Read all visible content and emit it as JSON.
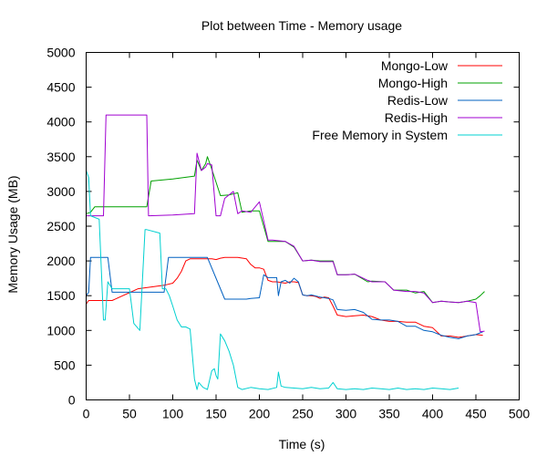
{
  "chart_data": {
    "type": "line",
    "title": "Plot between Time - Memory usage",
    "xlabel": "Time (s)",
    "ylabel": "Memory Usage (MB)",
    "xlim": [
      0,
      500
    ],
    "ylim": [
      0,
      5000
    ],
    "xticks": [
      0,
      50,
      100,
      150,
      200,
      250,
      300,
      350,
      400,
      450,
      500
    ],
    "yticks": [
      0,
      500,
      1000,
      1500,
      2000,
      2500,
      3000,
      3500,
      4000,
      4500,
      5000
    ],
    "grid": false,
    "legend_position": "top-right",
    "series": [
      {
        "name": "Mongo-Low",
        "color": "#ff0000",
        "x": [
          0,
          3,
          30,
          60,
          90,
          100,
          105,
          110,
          115,
          120,
          145,
          150,
          155,
          160,
          175,
          185,
          190,
          195,
          200,
          205,
          210,
          215,
          220,
          225,
          230,
          235,
          240,
          245,
          250,
          255,
          260,
          265,
          270,
          275,
          280,
          285,
          290,
          300,
          310,
          320,
          330,
          340,
          350,
          360,
          370,
          380,
          390,
          400,
          410,
          420,
          430,
          440,
          450,
          458
        ],
        "y": [
          1380,
          1430,
          1430,
          1600,
          1650,
          1680,
          1750,
          1850,
          2000,
          2030,
          2030,
          2020,
          2040,
          2050,
          2050,
          2030,
          1950,
          1900,
          1900,
          1880,
          1720,
          1700,
          1700,
          1690,
          1680,
          1700,
          1700,
          1690,
          1510,
          1500,
          1500,
          1490,
          1460,
          1480,
          1470,
          1350,
          1220,
          1200,
          1210,
          1220,
          1200,
          1150,
          1130,
          1130,
          1120,
          1120,
          1060,
          1040,
          920,
          920,
          900,
          920,
          940,
          930
        ]
      },
      {
        "name": "Mongo-High",
        "color": "#00a000",
        "x": [
          0,
          5,
          10,
          70,
          75,
          100,
          125,
          128,
          133,
          138,
          140,
          145,
          155,
          165,
          175,
          180,
          190,
          200,
          210,
          215,
          230,
          240,
          250,
          260,
          270,
          285,
          290,
          300,
          310,
          325,
          330,
          345,
          355,
          370,
          380,
          390,
          400,
          410,
          420,
          430,
          440,
          450,
          455,
          460
        ],
        "y": [
          2680,
          2700,
          2780,
          2780,
          3150,
          3180,
          3220,
          3450,
          3300,
          3400,
          3500,
          3320,
          2940,
          2950,
          2980,
          2700,
          2720,
          2720,
          2280,
          2280,
          2280,
          2200,
          2000,
          2010,
          2000,
          2000,
          1800,
          1800,
          1810,
          1700,
          1710,
          1700,
          1580,
          1580,
          1540,
          1560,
          1400,
          1420,
          1410,
          1400,
          1420,
          1450,
          1500,
          1560
        ]
      },
      {
        "name": "Redis-Low",
        "color": "#0060c0",
        "x": [
          0,
          3,
          5,
          25,
          30,
          35,
          60,
          90,
          95,
          120,
          140,
          160,
          185,
          190,
          200,
          205,
          210,
          220,
          222,
          225,
          230,
          235,
          240,
          245,
          250,
          255,
          260,
          270,
          280,
          285,
          290,
          300,
          310,
          320,
          330,
          340,
          350,
          360,
          370,
          380,
          390,
          400,
          410,
          420,
          430,
          440,
          450,
          458
        ],
        "y": [
          1500,
          1550,
          2050,
          2050,
          1550,
          1550,
          1550,
          1550,
          2050,
          2050,
          2050,
          1450,
          1450,
          1460,
          1470,
          1800,
          1760,
          1760,
          1500,
          1700,
          1720,
          1680,
          1750,
          1700,
          1510,
          1500,
          1510,
          1480,
          1460,
          1440,
          1300,
          1290,
          1300,
          1260,
          1160,
          1150,
          1150,
          1130,
          1060,
          1060,
          1000,
          980,
          930,
          900,
          880,
          920,
          940,
          980
        ]
      },
      {
        "name": "Redis-High",
        "color": "#a000d0",
        "x": [
          0,
          5,
          20,
          23,
          70,
          72,
          100,
          125,
          128,
          133,
          138,
          140,
          145,
          150,
          155,
          160,
          170,
          175,
          180,
          190,
          200,
          210,
          215,
          230,
          240,
          250,
          260,
          270,
          285,
          290,
          300,
          310,
          325,
          330,
          345,
          355,
          370,
          380,
          390,
          400,
          410,
          420,
          430,
          440,
          450,
          455,
          460
        ],
        "y": [
          2650,
          2650,
          2650,
          4100,
          4100,
          2650,
          2660,
          2680,
          3550,
          3300,
          3350,
          3400,
          3380,
          2650,
          2650,
          2900,
          3000,
          2680,
          2720,
          2700,
          2850,
          2300,
          2300,
          2280,
          2210,
          2000,
          2010,
          1990,
          1990,
          1800,
          1800,
          1810,
          1720,
          1700,
          1700,
          1580,
          1560,
          1560,
          1540,
          1400,
          1420,
          1410,
          1400,
          1420,
          1400,
          980,
          990
        ]
      },
      {
        "name": "Free Memory in System",
        "color": "#00d0d0",
        "x": [
          0,
          3,
          5,
          15,
          20,
          22,
          25,
          30,
          35,
          50,
          55,
          62,
          68,
          70,
          85,
          88,
          92,
          96,
          100,
          105,
          110,
          115,
          120,
          125,
          128,
          130,
          135,
          140,
          145,
          148,
          150,
          152,
          155,
          160,
          165,
          170,
          175,
          180,
          190,
          200,
          210,
          220,
          222,
          225,
          230,
          240,
          250,
          260,
          270,
          280,
          285,
          290,
          300,
          310,
          320,
          330,
          340,
          350,
          360,
          370,
          380,
          390,
          400,
          410,
          420,
          430
        ],
        "y": [
          3300,
          3200,
          2650,
          2600,
          1150,
          1150,
          1700,
          1600,
          1600,
          1600,
          1100,
          1000,
          2450,
          2450,
          2400,
          1600,
          1600,
          1500,
          1350,
          1150,
          1050,
          1050,
          1020,
          300,
          150,
          250,
          180,
          150,
          420,
          450,
          350,
          300,
          950,
          850,
          700,
          500,
          180,
          150,
          180,
          160,
          150,
          180,
          400,
          200,
          180,
          170,
          160,
          180,
          160,
          170,
          250,
          160,
          150,
          160,
          150,
          170,
          160,
          150,
          170,
          150,
          160,
          150,
          170,
          160,
          150,
          170
        ]
      }
    ]
  }
}
